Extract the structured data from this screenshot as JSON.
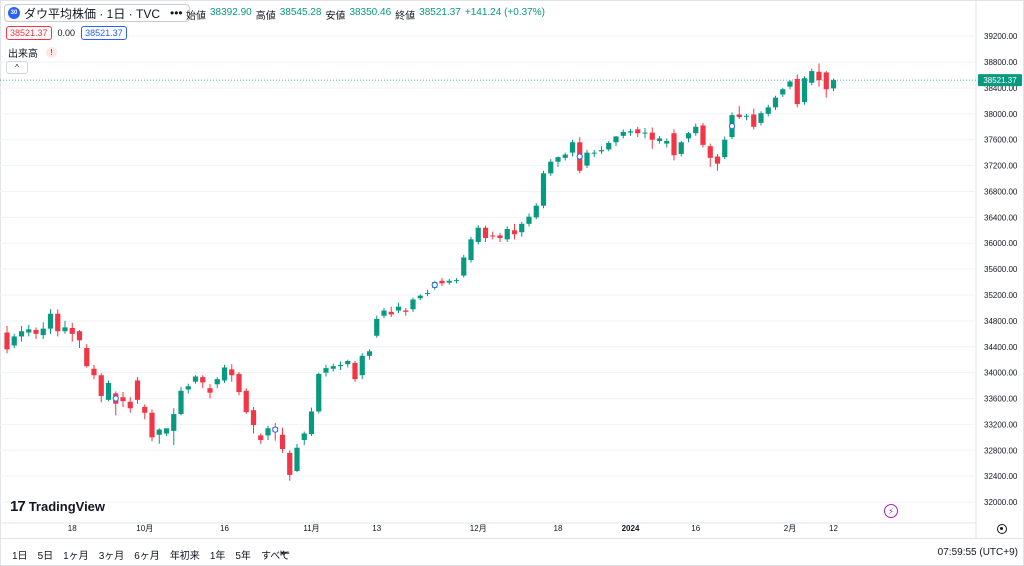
{
  "header": {
    "symbol_title": "ダウ平均株価 · 1日 · TVC",
    "symbol_icon": "dow-icon",
    "more_label": "•••",
    "ohlc": [
      {
        "label": "始値",
        "value": "38392.90"
      },
      {
        "label": "高値",
        "value": "38545.28"
      },
      {
        "label": "安値",
        "value": "38350.46"
      },
      {
        "label": "終値",
        "value": "38521.37"
      },
      {
        "label": "",
        "value": "+141.24 (+0.37%)"
      }
    ],
    "sell_price": "38521.37",
    "spread": "0.00",
    "buy_price": "38521.37",
    "volume_label": "出来高",
    "warning_symbol": "!",
    "collapse_symbol": "^"
  },
  "logo": {
    "text": "TradingView",
    "mark": "17"
  },
  "colors": {
    "up": "#089981",
    "down": "#f23645",
    "accent": "#2962ff",
    "grid": "#f0f3fa"
  },
  "chart_data": {
    "type": "candlestick",
    "current_price": "38521.37",
    "y_ticks": [
      "39200.00",
      "38800.00",
      "38400.00",
      "38000.00",
      "37600.00",
      "37200.00",
      "36800.00",
      "36400.00",
      "36000.00",
      "35600.00",
      "35200.00",
      "34800.00",
      "34400.00",
      "34000.00",
      "33600.00",
      "33200.00",
      "32800.00",
      "32400.00",
      "32000.00"
    ],
    "ylim": [
      31800,
      39450
    ],
    "x_labels": [
      {
        "label": "18",
        "index": 9
      },
      {
        "label": "10月",
        "index": 19
      },
      {
        "label": "16",
        "index": 30
      },
      {
        "label": "11月",
        "index": 42
      },
      {
        "label": "13",
        "index": 51
      },
      {
        "label": "12月",
        "index": 65
      },
      {
        "label": "18",
        "index": 76
      },
      {
        "label": "2024",
        "index": 86
      },
      {
        "label": "16",
        "index": 95
      },
      {
        "label": "2月",
        "index": 108
      },
      {
        "label": "12",
        "index": 114
      }
    ],
    "candles": [
      {
        "o": 34620,
        "h": 34720,
        "c": 34360,
        "l": 34300
      },
      {
        "o": 34420,
        "h": 34600,
        "c": 34560,
        "l": 34380
      },
      {
        "o": 34560,
        "h": 34720,
        "c": 34640,
        "l": 34480
      },
      {
        "o": 34620,
        "h": 34740,
        "c": 34670,
        "l": 34560
      },
      {
        "o": 34660,
        "h": 34700,
        "c": 34600,
        "l": 34520
      },
      {
        "o": 34580,
        "h": 34780,
        "c": 34680,
        "l": 34520
      },
      {
        "o": 34680,
        "h": 34980,
        "c": 34910,
        "l": 34600
      },
      {
        "o": 34910,
        "h": 34980,
        "c": 34640,
        "l": 34560
      },
      {
        "o": 34640,
        "h": 34800,
        "c": 34700,
        "l": 34600
      },
      {
        "o": 34690,
        "h": 34770,
        "c": 34600,
        "l": 34480
      },
      {
        "o": 34640,
        "h": 34660,
        "c": 34500,
        "l": 34380
      },
      {
        "o": 34380,
        "h": 34440,
        "c": 34100,
        "l": 34080
      },
      {
        "o": 34060,
        "h": 34120,
        "c": 33960,
        "l": 33900
      },
      {
        "o": 33960,
        "h": 33990,
        "c": 33640,
        "l": 33540
      },
      {
        "o": 33580,
        "h": 33880,
        "c": 33840,
        "l": 33560
      },
      {
        "o": 33680,
        "h": 33710,
        "c": 33520,
        "l": 33340
      },
      {
        "o": 33620,
        "h": 33700,
        "c": 33560,
        "l": 33470
      },
      {
        "o": 33550,
        "h": 33620,
        "c": 33450,
        "l": 33380
      },
      {
        "o": 33880,
        "h": 33930,
        "c": 33580,
        "l": 33520
      },
      {
        "o": 33470,
        "h": 33510,
        "c": 33380,
        "l": 33280
      },
      {
        "o": 33380,
        "h": 33430,
        "c": 33000,
        "l": 32940
      },
      {
        "o": 33040,
        "h": 33140,
        "c": 33120,
        "l": 32900
      },
      {
        "o": 33060,
        "h": 33100,
        "c": 33140,
        "l": 33020
      },
      {
        "o": 33100,
        "h": 33450,
        "c": 33360,
        "l": 32880
      },
      {
        "o": 33360,
        "h": 33780,
        "c": 33720,
        "l": 33340
      },
      {
        "o": 33740,
        "h": 33830,
        "c": 33790,
        "l": 33680
      },
      {
        "o": 33860,
        "h": 33960,
        "c": 33940,
        "l": 33830
      },
      {
        "o": 33930,
        "h": 33960,
        "c": 33850,
        "l": 33760
      },
      {
        "o": 33760,
        "h": 33820,
        "c": 33690,
        "l": 33600
      },
      {
        "o": 33820,
        "h": 33930,
        "c": 33900,
        "l": 33760
      },
      {
        "o": 33880,
        "h": 34120,
        "c": 34080,
        "l": 33840
      },
      {
        "o": 34050,
        "h": 34130,
        "c": 33960,
        "l": 33860
      },
      {
        "o": 33980,
        "h": 34010,
        "c": 33700,
        "l": 33650
      },
      {
        "o": 33720,
        "h": 33760,
        "c": 33390,
        "l": 33360
      },
      {
        "o": 33420,
        "h": 33470,
        "c": 33190,
        "l": 33060
      },
      {
        "o": 33030,
        "h": 33060,
        "c": 32960,
        "l": 32900
      },
      {
        "o": 33030,
        "h": 33180,
        "c": 33140,
        "l": 32960
      },
      {
        "o": 33160,
        "h": 33220,
        "c": 33080,
        "l": 32950
      },
      {
        "o": 33040,
        "h": 33150,
        "c": 32820,
        "l": 32760
      },
      {
        "o": 32760,
        "h": 32800,
        "c": 32420,
        "l": 32330
      },
      {
        "o": 32480,
        "h": 32900,
        "c": 32840,
        "l": 32460
      },
      {
        "o": 32960,
        "h": 33090,
        "c": 33060,
        "l": 32880
      },
      {
        "o": 33050,
        "h": 33460,
        "c": 33400,
        "l": 33020
      },
      {
        "o": 33400,
        "h": 34000,
        "c": 33980,
        "l": 33370
      },
      {
        "o": 34000,
        "h": 34120,
        "c": 34070,
        "l": 33940
      },
      {
        "o": 34060,
        "h": 34140,
        "c": 34100,
        "l": 34020
      },
      {
        "o": 34100,
        "h": 34170,
        "c": 34120,
        "l": 34040
      },
      {
        "o": 34130,
        "h": 34200,
        "c": 34180,
        "l": 34080
      },
      {
        "o": 34150,
        "h": 34180,
        "c": 33900,
        "l": 33860
      },
      {
        "o": 33960,
        "h": 34300,
        "c": 34260,
        "l": 33900
      },
      {
        "o": 34260,
        "h": 34360,
        "c": 34330,
        "l": 34200
      },
      {
        "o": 34570,
        "h": 34880,
        "c": 34830,
        "l": 34540
      },
      {
        "o": 34880,
        "h": 35000,
        "c": 34960,
        "l": 34840
      },
      {
        "o": 34940,
        "h": 35020,
        "c": 34900,
        "l": 34860
      },
      {
        "o": 34960,
        "h": 35080,
        "c": 35020,
        "l": 34920
      },
      {
        "o": 34960,
        "h": 35000,
        "c": 34940,
        "l": 34880
      },
      {
        "o": 34980,
        "h": 35160,
        "c": 35130,
        "l": 34940
      },
      {
        "o": 35150,
        "h": 35210,
        "c": 35190,
        "l": 35120
      },
      {
        "o": 35220,
        "h": 35280,
        "c": 35230,
        "l": 35180
      },
      {
        "o": 35310,
        "h": 35420,
        "c": 35400,
        "l": 35280
      },
      {
        "o": 35420,
        "h": 35460,
        "c": 35380,
        "l": 35340
      },
      {
        "o": 35390,
        "h": 35450,
        "c": 35420,
        "l": 35360
      },
      {
        "o": 35420,
        "h": 35460,
        "c": 35430,
        "l": 35380
      },
      {
        "o": 35500,
        "h": 35820,
        "c": 35780,
        "l": 35470
      },
      {
        "o": 35740,
        "h": 36100,
        "c": 36060,
        "l": 35700
      },
      {
        "o": 36020,
        "h": 36280,
        "c": 36240,
        "l": 35980
      },
      {
        "o": 36240,
        "h": 36270,
        "c": 36080,
        "l": 36020
      },
      {
        "o": 36120,
        "h": 36180,
        "c": 36110,
        "l": 36060
      },
      {
        "o": 36120,
        "h": 36160,
        "c": 36080,
        "l": 36020
      },
      {
        "o": 36060,
        "h": 36260,
        "c": 36220,
        "l": 36020
      },
      {
        "o": 36200,
        "h": 36300,
        "c": 36140,
        "l": 36060
      },
      {
        "o": 36170,
        "h": 36330,
        "c": 36300,
        "l": 36100
      },
      {
        "o": 36300,
        "h": 36460,
        "c": 36410,
        "l": 36260
      },
      {
        "o": 36400,
        "h": 36620,
        "c": 36580,
        "l": 36370
      },
      {
        "o": 36580,
        "h": 37120,
        "c": 37080,
        "l": 36540
      },
      {
        "o": 37080,
        "h": 37300,
        "c": 37260,
        "l": 37040
      },
      {
        "o": 37260,
        "h": 37340,
        "c": 37330,
        "l": 37180
      },
      {
        "o": 37320,
        "h": 37400,
        "c": 37370,
        "l": 37280
      },
      {
        "o": 37400,
        "h": 37600,
        "c": 37560,
        "l": 37340
      },
      {
        "o": 37560,
        "h": 37640,
        "c": 37120,
        "l": 37080
      },
      {
        "o": 37200,
        "h": 37440,
        "c": 37400,
        "l": 37160
      },
      {
        "o": 37390,
        "h": 37440,
        "c": 37400,
        "l": 37330
      },
      {
        "o": 37420,
        "h": 37500,
        "c": 37440,
        "l": 37380
      },
      {
        "o": 37450,
        "h": 37580,
        "c": 37550,
        "l": 37420
      },
      {
        "o": 37560,
        "h": 37660,
        "c": 37650,
        "l": 37500
      },
      {
        "o": 37660,
        "h": 37760,
        "c": 37720,
        "l": 37620
      },
      {
        "o": 37710,
        "h": 37770,
        "c": 37730,
        "l": 37660
      },
      {
        "o": 37760,
        "h": 37800,
        "c": 37700,
        "l": 37640
      },
      {
        "o": 37700,
        "h": 37780,
        "c": 37710,
        "l": 37620
      },
      {
        "o": 37710,
        "h": 37790,
        "c": 37600,
        "l": 37460
      },
      {
        "o": 37580,
        "h": 37660,
        "c": 37620,
        "l": 37540
      },
      {
        "o": 37540,
        "h": 37620,
        "c": 37580,
        "l": 37480
      },
      {
        "o": 37700,
        "h": 37760,
        "c": 37360,
        "l": 37280
      },
      {
        "o": 37380,
        "h": 37580,
        "c": 37560,
        "l": 37340
      },
      {
        "o": 37620,
        "h": 37720,
        "c": 37700,
        "l": 37560
      },
      {
        "o": 37700,
        "h": 37850,
        "c": 37800,
        "l": 37660
      },
      {
        "o": 37820,
        "h": 37860,
        "c": 37520,
        "l": 37480
      },
      {
        "o": 37500,
        "h": 37540,
        "c": 37320,
        "l": 37180
      },
      {
        "o": 37340,
        "h": 37380,
        "c": 37230,
        "l": 37120
      },
      {
        "o": 37330,
        "h": 37650,
        "c": 37600,
        "l": 37300
      },
      {
        "o": 37640,
        "h": 38020,
        "c": 37980,
        "l": 37610
      },
      {
        "o": 37990,
        "h": 38120,
        "c": 37950,
        "l": 37920
      },
      {
        "o": 37960,
        "h": 38000,
        "c": 37970,
        "l": 37900
      },
      {
        "o": 37990,
        "h": 38080,
        "c": 37800,
        "l": 37760
      },
      {
        "o": 37860,
        "h": 38040,
        "c": 38010,
        "l": 37820
      },
      {
        "o": 38000,
        "h": 38140,
        "c": 38100,
        "l": 37960
      },
      {
        "o": 38100,
        "h": 38280,
        "c": 38250,
        "l": 38060
      },
      {
        "o": 38300,
        "h": 38400,
        "c": 38380,
        "l": 38260
      },
      {
        "o": 38420,
        "h": 38520,
        "c": 38500,
        "l": 38380
      },
      {
        "o": 38540,
        "h": 38610,
        "c": 38150,
        "l": 38100
      },
      {
        "o": 38180,
        "h": 38580,
        "c": 38550,
        "l": 38140
      },
      {
        "o": 38480,
        "h": 38700,
        "c": 38660,
        "l": 38440
      },
      {
        "o": 38650,
        "h": 38780,
        "c": 38520,
        "l": 38420
      },
      {
        "o": 38640,
        "h": 38660,
        "c": 38380,
        "l": 38250
      },
      {
        "o": 38393,
        "h": 38545,
        "c": 38521,
        "l": 38350
      }
    ],
    "markers": [
      {
        "index": 15,
        "type": "dividend"
      },
      {
        "index": 37,
        "type": "split"
      },
      {
        "index": 59,
        "type": "event"
      },
      {
        "index": 79,
        "type": "split"
      },
      {
        "index": 100,
        "type": "event"
      }
    ]
  },
  "bottom": {
    "ranges": [
      "1日",
      "5日",
      "1ヶ月",
      "3ヶ月",
      "6ヶ月",
      "年初来",
      "1年",
      "5年",
      "すべて"
    ],
    "clock": "07:59:55 (UTC+9)"
  }
}
